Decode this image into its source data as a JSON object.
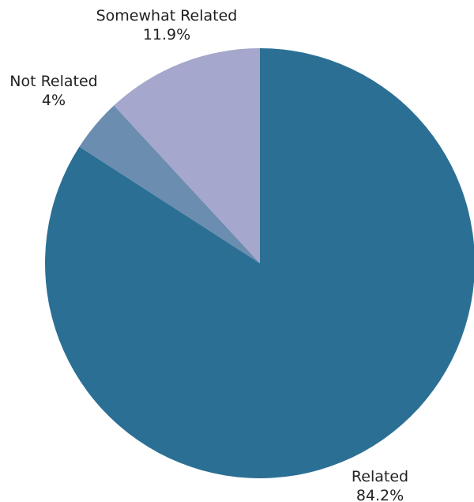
{
  "chart_data": {
    "type": "pie",
    "title": "",
    "slices": [
      {
        "label": "Related",
        "value": 84.2,
        "value_label": "84.2%",
        "color": "#2b7094"
      },
      {
        "label": "Not Related",
        "value": 4.0,
        "value_label": "4%",
        "color": "#6b8db0"
      },
      {
        "label": "Somewhat Related",
        "value": 11.9,
        "value_label": "11.9%",
        "color": "#a6a7cd"
      }
    ],
    "start_angle": "12 o'clock",
    "direction": "clockwise",
    "legend": "none"
  }
}
